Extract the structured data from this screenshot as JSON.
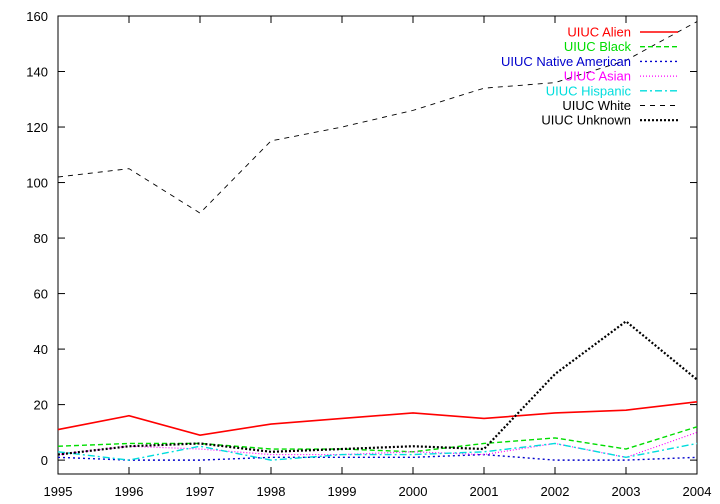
{
  "chart_data": {
    "type": "line",
    "title": "",
    "xlabel": "",
    "ylabel": "",
    "x": [
      1995,
      1996,
      1997,
      1998,
      1999,
      2000,
      2001,
      2002,
      2003,
      2004
    ],
    "xlim": [
      1995,
      2004
    ],
    "ylim": [
      -5,
      160
    ],
    "x_ticks": [
      "1995",
      "1996",
      "1997",
      "1998",
      "1999",
      "2000",
      "2001",
      "2002",
      "2003",
      "2004"
    ],
    "y_ticks": [
      "0",
      "20",
      "40",
      "60",
      "80",
      "100",
      "120",
      "140",
      "160"
    ],
    "grid": false,
    "legend_position": "top-right",
    "series": [
      {
        "name": "UIUC Alien",
        "color": "#ff0000",
        "style": "solid",
        "values": [
          11,
          16,
          9,
          13,
          15,
          17,
          15,
          17,
          18,
          21
        ]
      },
      {
        "name": "UIUC Black",
        "color": "#00dd00",
        "style": "dashed",
        "values": [
          5,
          6,
          6,
          4,
          4,
          3,
          6,
          8,
          4,
          12
        ]
      },
      {
        "name": "UIUC Native American",
        "color": "#0000cc",
        "style": "dotted",
        "values": [
          1,
          0,
          0,
          1,
          1,
          1,
          2,
          0,
          0,
          1
        ]
      },
      {
        "name": "UIUC Asian",
        "color": "#ff00ff",
        "style": "dotted-fine",
        "values": [
          2,
          5,
          4,
          2,
          2,
          3,
          2,
          6,
          1,
          10
        ]
      },
      {
        "name": "UIUC Hispanic",
        "color": "#00dddd",
        "style": "dashdot",
        "values": [
          3,
          0,
          5,
          0,
          2,
          2,
          3,
          6,
          1,
          6
        ]
      },
      {
        "name": "UIUC White",
        "color": "#000000",
        "style": "sparse-dashed",
        "values": [
          102,
          105,
          89,
          115,
          120,
          126,
          134,
          136,
          144,
          158
        ]
      },
      {
        "name": "UIUC Unknown",
        "color": "#000000",
        "style": "heavy-dotted",
        "values": [
          2,
          5,
          6,
          3,
          4,
          5,
          4,
          31,
          50,
          29
        ]
      }
    ]
  }
}
